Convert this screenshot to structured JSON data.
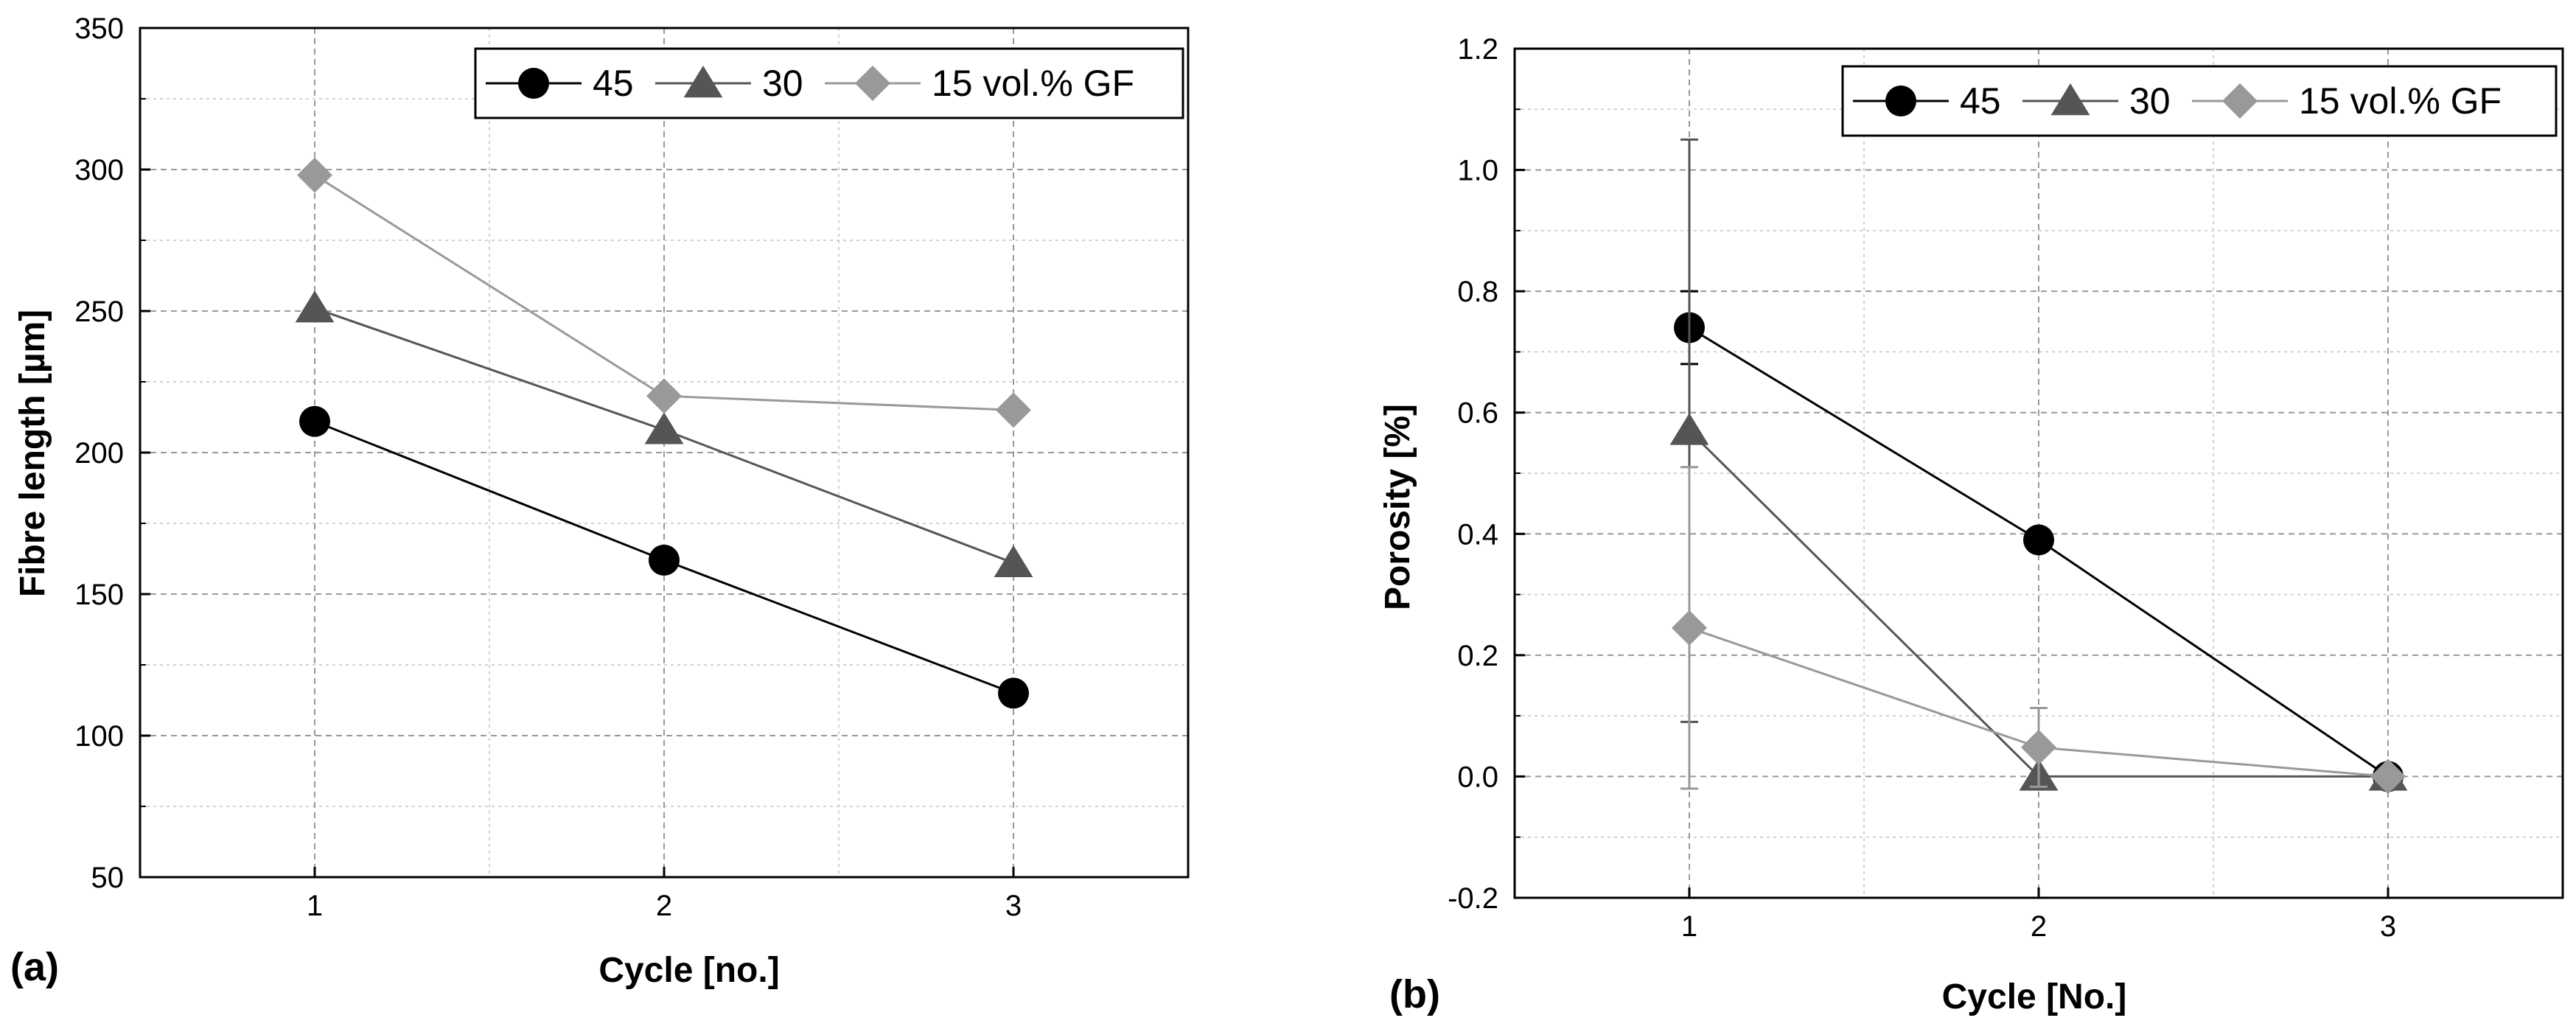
{
  "chart_data": [
    {
      "id": "a",
      "type": "line",
      "panel_label": "(a)",
      "title": "",
      "xlabel": "Cycle [no.]",
      "ylabel": "Fibre length [µm]",
      "x": [
        1,
        2,
        3
      ],
      "xlim": [
        0.5,
        3.5
      ],
      "ylim": [
        50,
        350
      ],
      "xticks": [
        "1",
        "2",
        "3"
      ],
      "yticks": [
        "50",
        "100",
        "150",
        "200",
        "250",
        "300",
        "350"
      ],
      "ytick_values": [
        50,
        100,
        150,
        200,
        250,
        300,
        350
      ],
      "grid": true,
      "legend_position": "top-right",
      "series": [
        {
          "name": "45",
          "marker": "circle",
          "color": "#000000",
          "line_color": "#000000",
          "values": [
            211,
            162,
            115
          ]
        },
        {
          "name": "30",
          "marker": "triangle",
          "color": "#555555",
          "line_color": "#555555",
          "values": [
            251,
            208,
            161
          ]
        },
        {
          "name": "15 vol.% GF",
          "marker": "diamond",
          "color": "#999999",
          "line_color": "#999999",
          "values": [
            298,
            220,
            215
          ]
        }
      ]
    },
    {
      "id": "b",
      "type": "line",
      "panel_label": "(b)",
      "title": "",
      "xlabel": "Cycle [No.]",
      "ylabel": "Porosity [%]",
      "x": [
        1,
        2,
        3
      ],
      "xlim": [
        0.5,
        3.5
      ],
      "ylim": [
        -0.2,
        1.2
      ],
      "xticks": [
        "1",
        "2",
        "3"
      ],
      "yticks": [
        "-0.2",
        "0.0",
        "0.2",
        "0.4",
        "0.6",
        "0.8",
        "1.0",
        "1.2"
      ],
      "ytick_values": [
        -0.2,
        0.0,
        0.2,
        0.4,
        0.6,
        0.8,
        1.0,
        1.2
      ],
      "grid": true,
      "legend_position": "top-right",
      "series": [
        {
          "name": "45",
          "marker": "circle",
          "color": "#000000",
          "line_color": "#000000",
          "values": [
            0.74,
            0.39,
            0.0
          ],
          "errors": [
            0.06,
            0,
            0
          ]
        },
        {
          "name": "30",
          "marker": "triangle",
          "color": "#555555",
          "line_color": "#555555",
          "values": [
            0.57,
            0.0,
            0.0
          ],
          "errors": [
            0.48,
            0,
            0
          ]
        },
        {
          "name": "15 vol.% GF",
          "marker": "diamond",
          "color": "#999999",
          "line_color": "#999999",
          "values": [
            0.245,
            0.048,
            0.0
          ],
          "errors": [
            0.265,
            0.065,
            0
          ]
        }
      ]
    }
  ]
}
